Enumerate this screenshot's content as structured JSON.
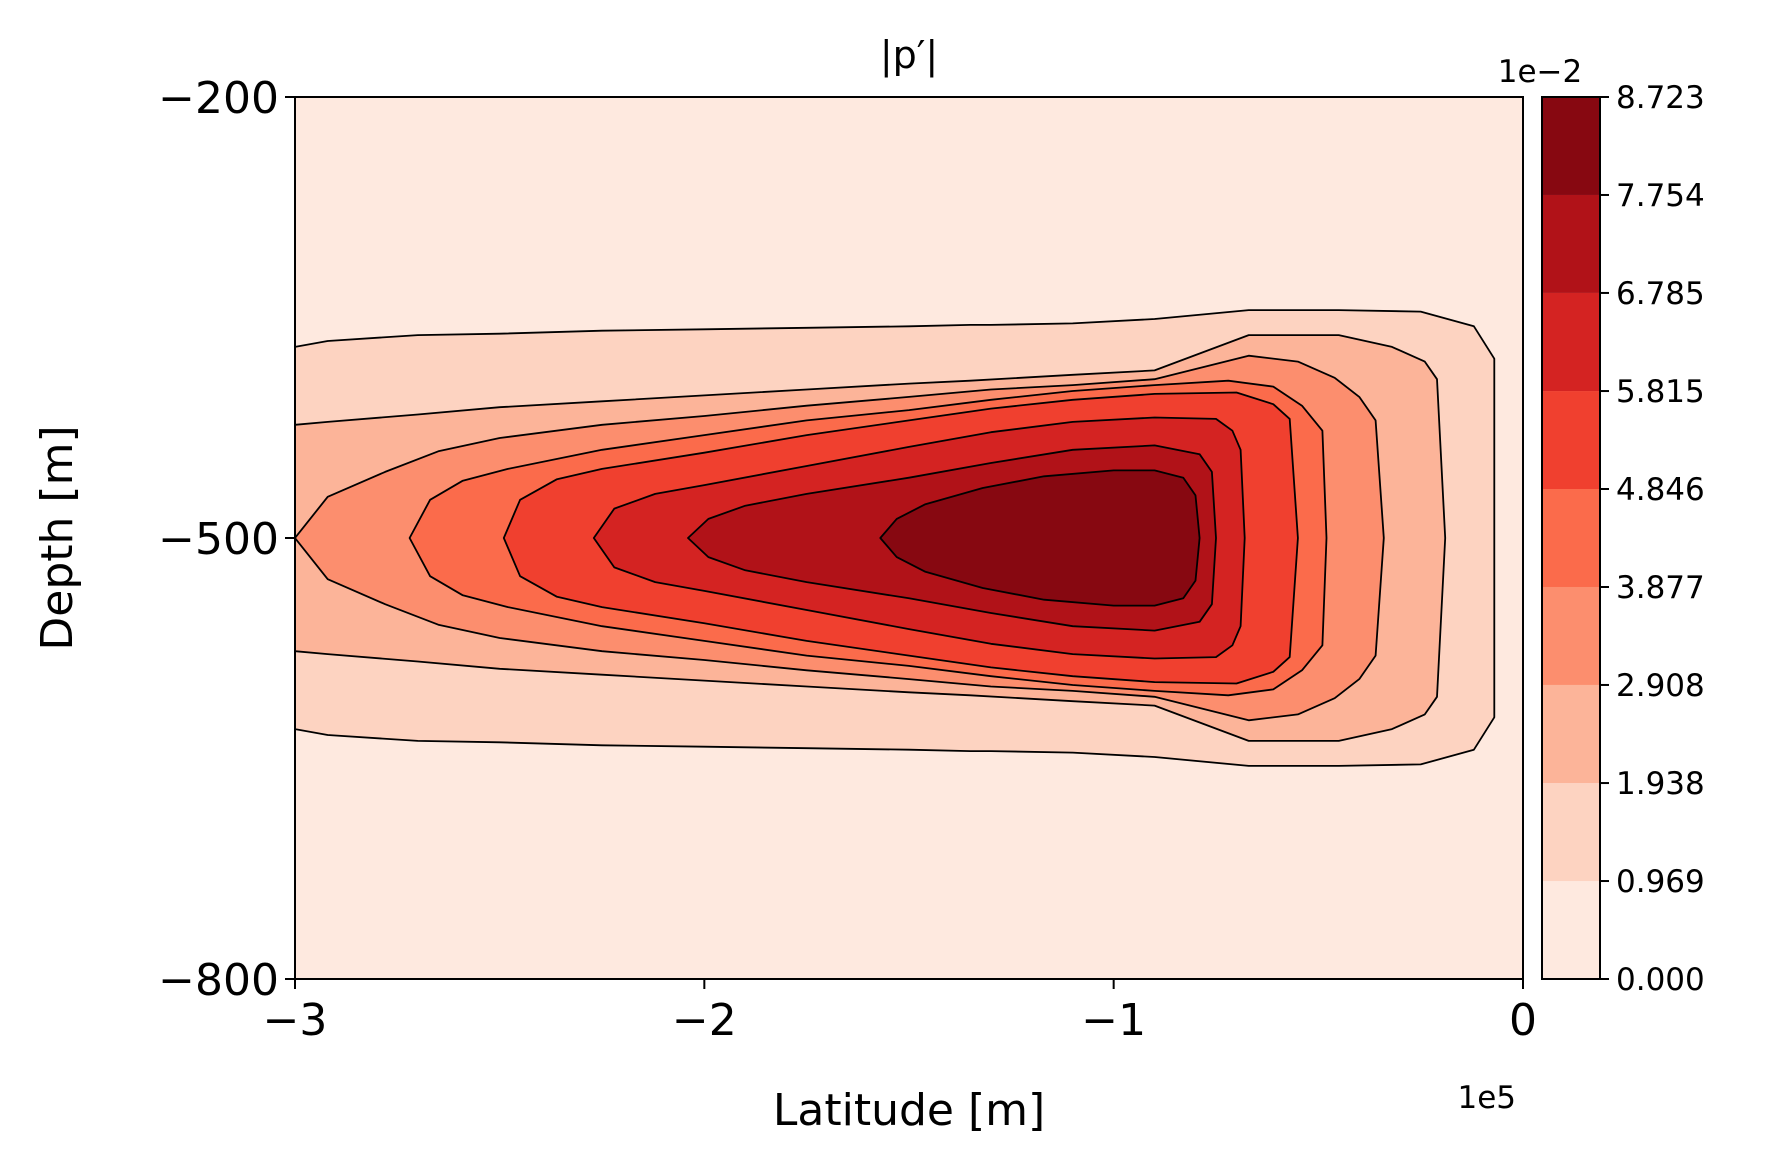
{
  "chart_data": {
    "type": "contour",
    "title": "|p′|",
    "xlabel": "Latitude [m]",
    "ylabel": "Depth [m]",
    "x_scale_label": "1e5",
    "x_range": [
      -300000,
      0
    ],
    "y_range": [
      -800,
      -200
    ],
    "x_ticks": [
      -300000,
      -200000,
      -100000,
      0
    ],
    "x_tick_labels": [
      "−3",
      "−2",
      "−1",
      "0"
    ],
    "y_ticks": [
      -800,
      -500,
      -200
    ],
    "y_tick_labels": [
      "−800",
      "−500",
      "−200"
    ],
    "colorbar": {
      "multiplier_label": "1e−2",
      "levels": [
        0.0,
        0.969,
        1.938,
        2.908,
        3.877,
        4.846,
        5.815,
        6.785,
        7.754,
        8.723
      ],
      "tick_labels": [
        "0.000",
        "0.969",
        "1.938",
        "2.908",
        "3.877",
        "4.846",
        "5.815",
        "6.785",
        "7.754",
        "8.723"
      ],
      "colors": [
        "#fee9df",
        "#fdd3c1",
        "#fcb499",
        "#fc8e6e",
        "#fb6b4b",
        "#f0402f",
        "#d42322",
        "#b11218",
        "#870811"
      ]
    },
    "contour_levels": [
      {
        "level": 0.969,
        "points": [
          [
            -300000,
            -370
          ],
          [
            -292000,
            -366
          ],
          [
            -270000,
            -362
          ],
          [
            -250000,
            -361
          ],
          [
            -225000,
            -359
          ],
          [
            -200000,
            -358
          ],
          [
            -175000,
            -357
          ],
          [
            -150000,
            -356
          ],
          [
            -135000,
            -355
          ],
          [
            -130000,
            -355
          ],
          [
            -110000,
            -354
          ],
          [
            -90000,
            -351
          ],
          [
            -67000,
            -345
          ],
          [
            -45000,
            -345
          ],
          [
            -25000,
            -346
          ],
          [
            -12000,
            -356
          ],
          [
            -7000,
            -378
          ],
          [
            -7000,
            -500
          ],
          [
            -7000,
            -622
          ],
          [
            -12000,
            -644
          ],
          [
            -25000,
            -654
          ],
          [
            -45000,
            -655
          ],
          [
            -67000,
            -655
          ],
          [
            -90000,
            -649
          ],
          [
            -110000,
            -646
          ],
          [
            -130000,
            -645
          ],
          [
            -135000,
            -645
          ],
          [
            -150000,
            -644
          ],
          [
            -175000,
            -643
          ],
          [
            -200000,
            -642
          ],
          [
            -225000,
            -641
          ],
          [
            -250000,
            -639
          ],
          [
            -270000,
            -638
          ],
          [
            -292000,
            -634
          ],
          [
            -300000,
            -630
          ]
        ]
      },
      {
        "level": 1.938,
        "points": [
          [
            -300000,
            -423
          ],
          [
            -292000,
            -421
          ],
          [
            -270000,
            -416
          ],
          [
            -250000,
            -411
          ],
          [
            -225000,
            -407
          ],
          [
            -200000,
            -403
          ],
          [
            -175000,
            -399
          ],
          [
            -150000,
            -395
          ],
          [
            -135000,
            -393
          ],
          [
            -110000,
            -389
          ],
          [
            -90000,
            -386
          ],
          [
            -67000,
            -362
          ],
          [
            -45000,
            -362
          ],
          [
            -32000,
            -370
          ],
          [
            -24000,
            -380
          ],
          [
            -21000,
            -392
          ],
          [
            -19000,
            -500
          ],
          [
            -21000,
            -608
          ],
          [
            -24000,
            -620
          ],
          [
            -32000,
            -630
          ],
          [
            -45000,
            -638
          ],
          [
            -67000,
            -638
          ],
          [
            -90000,
            -614
          ],
          [
            -110000,
            -611
          ],
          [
            -135000,
            -607
          ],
          [
            -150000,
            -605
          ],
          [
            -175000,
            -601
          ],
          [
            -200000,
            -597
          ],
          [
            -225000,
            -593
          ],
          [
            -250000,
            -589
          ],
          [
            -270000,
            -584
          ],
          [
            -292000,
            -579
          ],
          [
            -300000,
            -577
          ]
        ]
      },
      {
        "level": 2.908,
        "points": [
          [
            -300000,
            -500
          ],
          [
            -292000,
            -472
          ],
          [
            -278000,
            -455
          ],
          [
            -265000,
            -441
          ],
          [
            -250000,
            -432
          ],
          [
            -225000,
            -423
          ],
          [
            -200000,
            -417
          ],
          [
            -175000,
            -410
          ],
          [
            -150000,
            -404
          ],
          [
            -130000,
            -399
          ],
          [
            -110000,
            -396
          ],
          [
            -90000,
            -392
          ],
          [
            -67000,
            -376
          ],
          [
            -55000,
            -380
          ],
          [
            -46000,
            -391
          ],
          [
            -40000,
            -404
          ],
          [
            -36000,
            -420
          ],
          [
            -34000,
            -500
          ],
          [
            -36000,
            -580
          ],
          [
            -40000,
            -596
          ],
          [
            -46000,
            -609
          ],
          [
            -55000,
            -620
          ],
          [
            -67000,
            -624
          ],
          [
            -90000,
            -608
          ],
          [
            -110000,
            -604
          ],
          [
            -130000,
            -601
          ],
          [
            -150000,
            -596
          ],
          [
            -175000,
            -590
          ],
          [
            -200000,
            -583
          ],
          [
            -225000,
            -577
          ],
          [
            -250000,
            -568
          ],
          [
            -265000,
            -559
          ],
          [
            -278000,
            -545
          ],
          [
            -292000,
            -528
          ]
        ]
      },
      {
        "level": 3.877,
        "points": [
          [
            -272000,
            -500
          ],
          [
            -267000,
            -474
          ],
          [
            -259000,
            -461
          ],
          [
            -248000,
            -453
          ],
          [
            -225000,
            -440
          ],
          [
            -200000,
            -430
          ],
          [
            -175000,
            -420
          ],
          [
            -150000,
            -413
          ],
          [
            -130000,
            -406
          ],
          [
            -110000,
            -400
          ],
          [
            -90000,
            -396
          ],
          [
            -72000,
            -393
          ],
          [
            -61000,
            -397
          ],
          [
            -54000,
            -410
          ],
          [
            -49000,
            -427
          ],
          [
            -48000,
            -500
          ],
          [
            -49000,
            -573
          ],
          [
            -54000,
            -590
          ],
          [
            -61000,
            -603
          ],
          [
            -72000,
            -607
          ],
          [
            -90000,
            -604
          ],
          [
            -110000,
            -600
          ],
          [
            -130000,
            -594
          ],
          [
            -150000,
            -587
          ],
          [
            -175000,
            -580
          ],
          [
            -200000,
            -570
          ],
          [
            -225000,
            -560
          ],
          [
            -248000,
            -547
          ],
          [
            -259000,
            -539
          ],
          [
            -267000,
            -526
          ]
        ]
      },
      {
        "level": 4.846,
        "points": [
          [
            -249000,
            -500
          ],
          [
            -245000,
            -474
          ],
          [
            -236000,
            -460
          ],
          [
            -225000,
            -453
          ],
          [
            -200000,
            -442
          ],
          [
            -175000,
            -430
          ],
          [
            -150000,
            -420
          ],
          [
            -130000,
            -412
          ],
          [
            -110000,
            -406
          ],
          [
            -90000,
            -402
          ],
          [
            -70000,
            -401
          ],
          [
            -61000,
            -409
          ],
          [
            -57000,
            -419
          ],
          [
            -55000,
            -500
          ],
          [
            -57000,
            -581
          ],
          [
            -61000,
            -591
          ],
          [
            -70000,
            -599
          ],
          [
            -90000,
            -598
          ],
          [
            -110000,
            -594
          ],
          [
            -130000,
            -588
          ],
          [
            -150000,
            -580
          ],
          [
            -175000,
            -570
          ],
          [
            -200000,
            -558
          ],
          [
            -225000,
            -547
          ],
          [
            -236000,
            -540
          ],
          [
            -245000,
            -526
          ]
        ]
      },
      {
        "level": 5.815,
        "points": [
          [
            -227000,
            -500
          ],
          [
            -222000,
            -480
          ],
          [
            -212000,
            -470
          ],
          [
            -200000,
            -464
          ],
          [
            -175000,
            -451
          ],
          [
            -150000,
            -438
          ],
          [
            -130000,
            -428
          ],
          [
            -110000,
            -421
          ],
          [
            -90000,
            -418
          ],
          [
            -75000,
            -419
          ],
          [
            -71000,
            -427
          ],
          [
            -69000,
            -440
          ],
          [
            -68000,
            -500
          ],
          [
            -69000,
            -560
          ],
          [
            -71000,
            -573
          ],
          [
            -75000,
            -581
          ],
          [
            -90000,
            -582
          ],
          [
            -110000,
            -579
          ],
          [
            -130000,
            -572
          ],
          [
            -150000,
            -562
          ],
          [
            -175000,
            -549
          ],
          [
            -200000,
            -536
          ],
          [
            -212000,
            -530
          ],
          [
            -222000,
            -520
          ]
        ]
      },
      {
        "level": 6.785,
        "points": [
          [
            -204000,
            -500
          ],
          [
            -199000,
            -487
          ],
          [
            -190000,
            -478
          ],
          [
            -175000,
            -470
          ],
          [
            -150000,
            -459
          ],
          [
            -130000,
            -449
          ],
          [
            -110000,
            -440
          ],
          [
            -90000,
            -437
          ],
          [
            -79000,
            -443
          ],
          [
            -76000,
            -455
          ],
          [
            -75000,
            -500
          ],
          [
            -76000,
            -545
          ],
          [
            -79000,
            -557
          ],
          [
            -90000,
            -563
          ],
          [
            -110000,
            -560
          ],
          [
            -130000,
            -551
          ],
          [
            -150000,
            -541
          ],
          [
            -175000,
            -530
          ],
          [
            -190000,
            -522
          ],
          [
            -199000,
            -513
          ]
        ]
      },
      {
        "level": 7.754,
        "points": [
          [
            -157000,
            -500
          ],
          [
            -153000,
            -487
          ],
          [
            -146000,
            -477
          ],
          [
            -132000,
            -466
          ],
          [
            -117000,
            -458
          ],
          [
            -100000,
            -454
          ],
          [
            -90000,
            -454
          ],
          [
            -83000,
            -459
          ],
          [
            -80000,
            -471
          ],
          [
            -79000,
            -500
          ],
          [
            -80000,
            -529
          ],
          [
            -83000,
            -541
          ],
          [
            -90000,
            -546
          ],
          [
            -100000,
            -546
          ],
          [
            -117000,
            -542
          ],
          [
            -132000,
            -534
          ],
          [
            -146000,
            -523
          ],
          [
            -153000,
            -513
          ]
        ]
      }
    ]
  }
}
